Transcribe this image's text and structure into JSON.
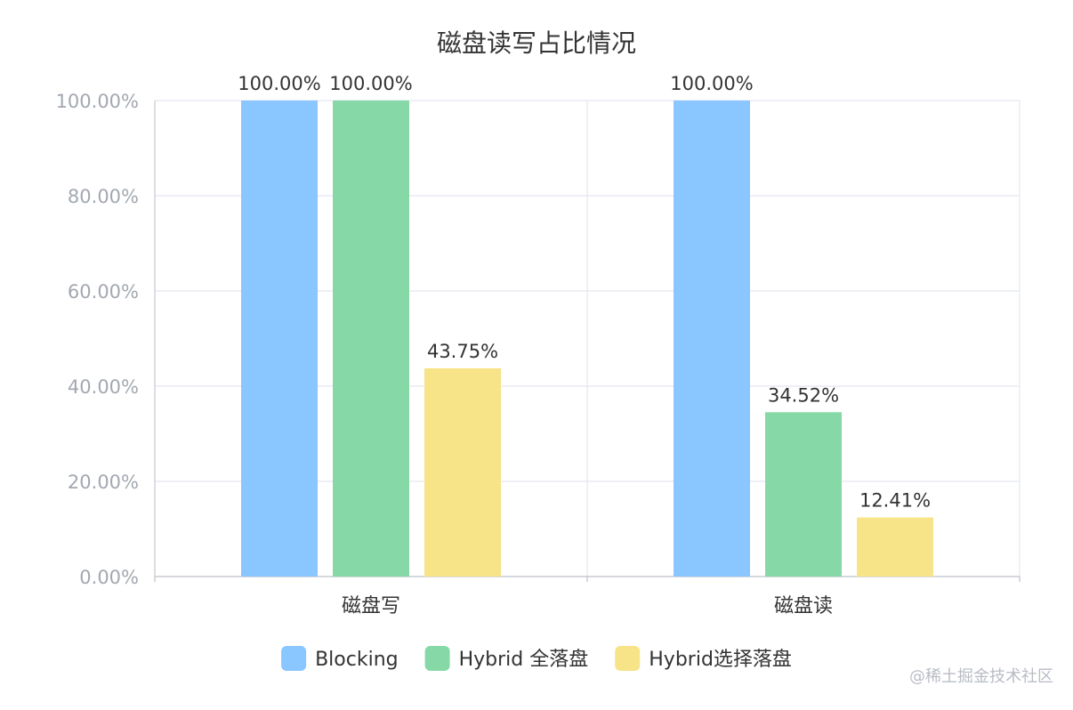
{
  "chart_data": {
    "type": "bar",
    "title": "磁盘读写占比情况",
    "categories": [
      "磁盘写",
      "磁盘读"
    ],
    "series": [
      {
        "name": "Blocking",
        "values": [
          100.0,
          100.0
        ],
        "color": "#8AC6FF"
      },
      {
        "name": "Hybrid 全落盘",
        "values": [
          100.0,
          34.52
        ],
        "color": "#86D9A7"
      },
      {
        "name": "Hybrid选择落盘",
        "values": [
          43.75,
          12.41
        ],
        "color": "#F7E388"
      }
    ],
    "data_labels": [
      [
        "100.00%",
        "100.00%"
      ],
      [
        "100.00%",
        "34.52%"
      ],
      [
        "43.75%",
        "12.41%"
      ]
    ],
    "ylim": [
      0,
      100
    ],
    "yticks": [
      "0.00%",
      "20.00%",
      "40.00%",
      "60.00%",
      "80.00%",
      "100.00%"
    ],
    "yaxis_format": "percent",
    "grid": true,
    "legend_position": "bottom"
  },
  "watermark": "@稀土掘金技术社区"
}
